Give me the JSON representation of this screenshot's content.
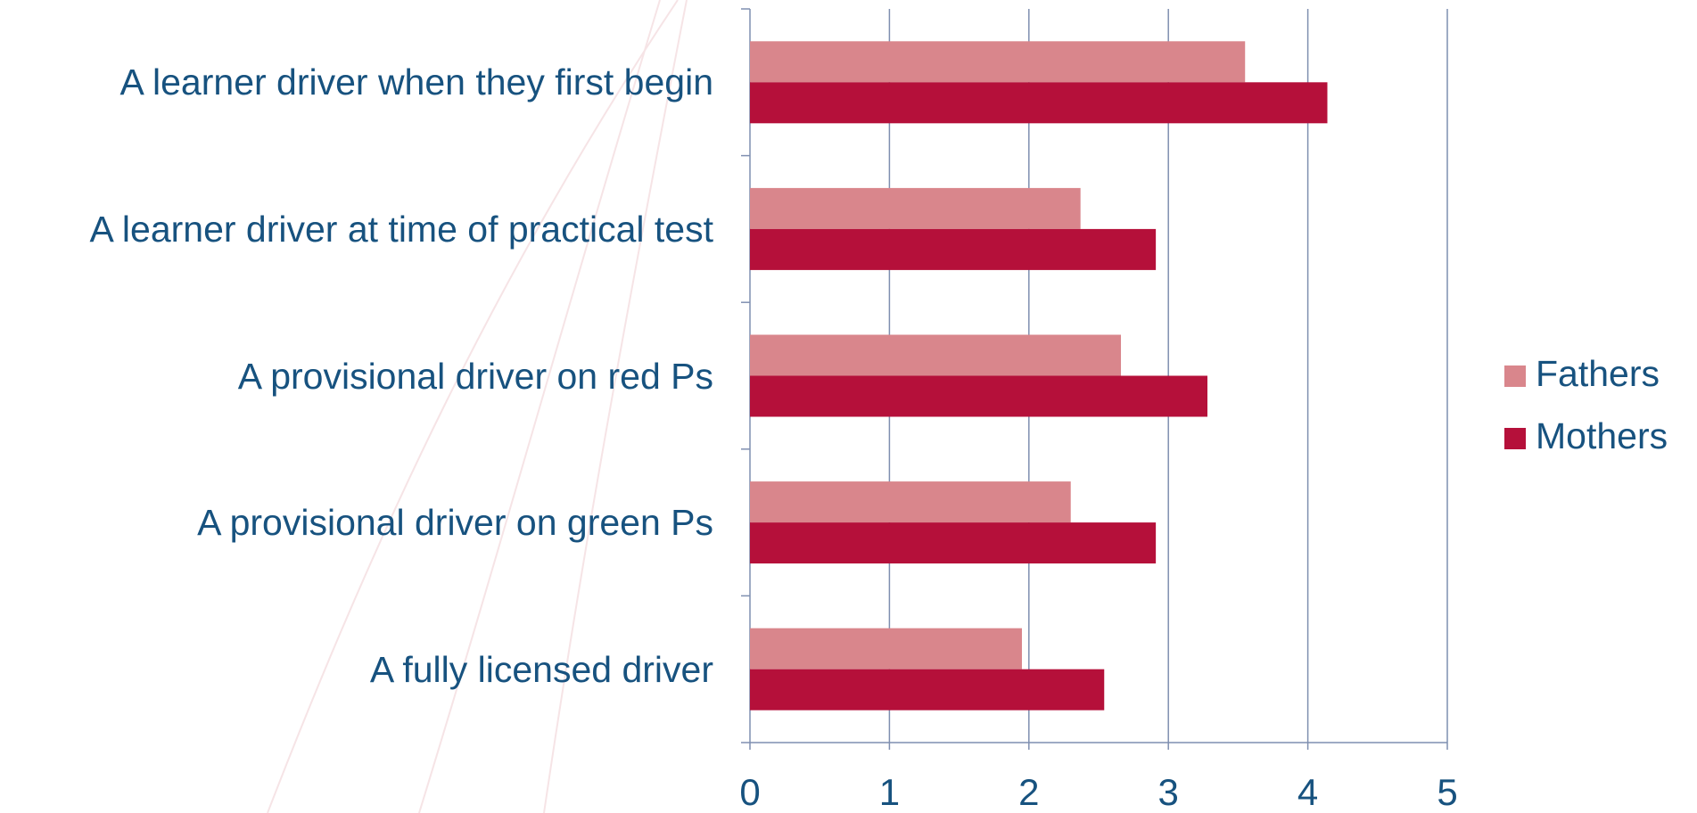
{
  "chart_data": {
    "type": "bar",
    "orientation": "horizontal",
    "categories": [
      "A learner driver when they first begin",
      "A learner driver at time of practical test",
      "A provisional driver on red Ps",
      "A provisional driver on green Ps",
      "A fully licensed driver"
    ],
    "series": [
      {
        "name": "Fathers",
        "color": "#d9868c",
        "values": [
          3.55,
          2.37,
          2.66,
          2.3,
          1.95
        ]
      },
      {
        "name": "Mothers",
        "color": "#b5103a",
        "values": [
          4.14,
          2.91,
          3.28,
          2.91,
          2.54
        ]
      }
    ],
    "xlim": [
      0,
      5
    ],
    "xticks": [
      0,
      1,
      2,
      3,
      4,
      5
    ],
    "grid": true,
    "legend": "right"
  }
}
